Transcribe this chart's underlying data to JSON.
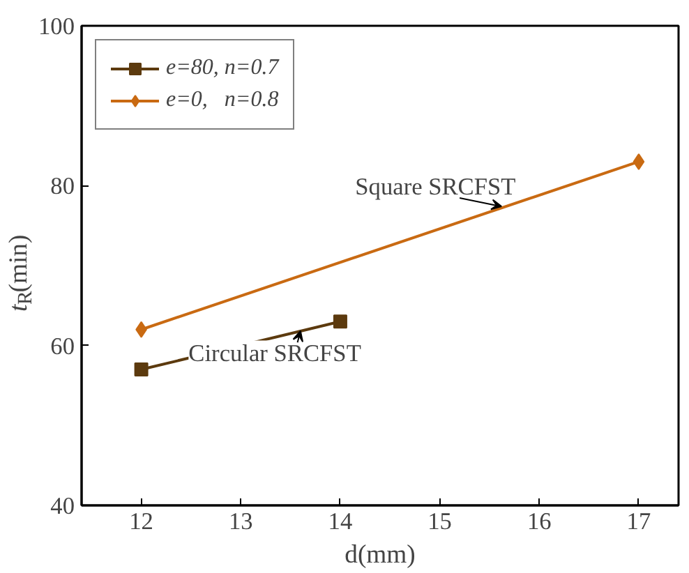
{
  "chart_data": {
    "type": "line",
    "xlabel": "d(mm)",
    "ylabel": "t$_{R}$(min)",
    "series": [
      {
        "name": "e=80, n=0.7",
        "color": "#5c3a0e",
        "marker": "square",
        "x": [
          12,
          14
        ],
        "values": [
          57,
          63
        ]
      },
      {
        "name": "e=0,   n=0.8",
        "color": "#c96a12",
        "marker": "diamond",
        "x": [
          12,
          17
        ],
        "values": [
          62,
          83
        ]
      }
    ],
    "xlim": [
      11.4,
      17.4
    ],
    "xticks": [
      12,
      13,
      14,
      15,
      16,
      17
    ],
    "ylim": [
      40,
      100
    ],
    "yticks": [
      40,
      60,
      80,
      100
    ],
    "annotations": [
      {
        "text": "Square SRCFST",
        "x": 15.62,
        "y": 77.4
      },
      {
        "text": "Circular SRCFST",
        "x": 13.6,
        "y": 61.8
      }
    ],
    "grid": false,
    "legend": "top left",
    "line_style": "solid"
  }
}
